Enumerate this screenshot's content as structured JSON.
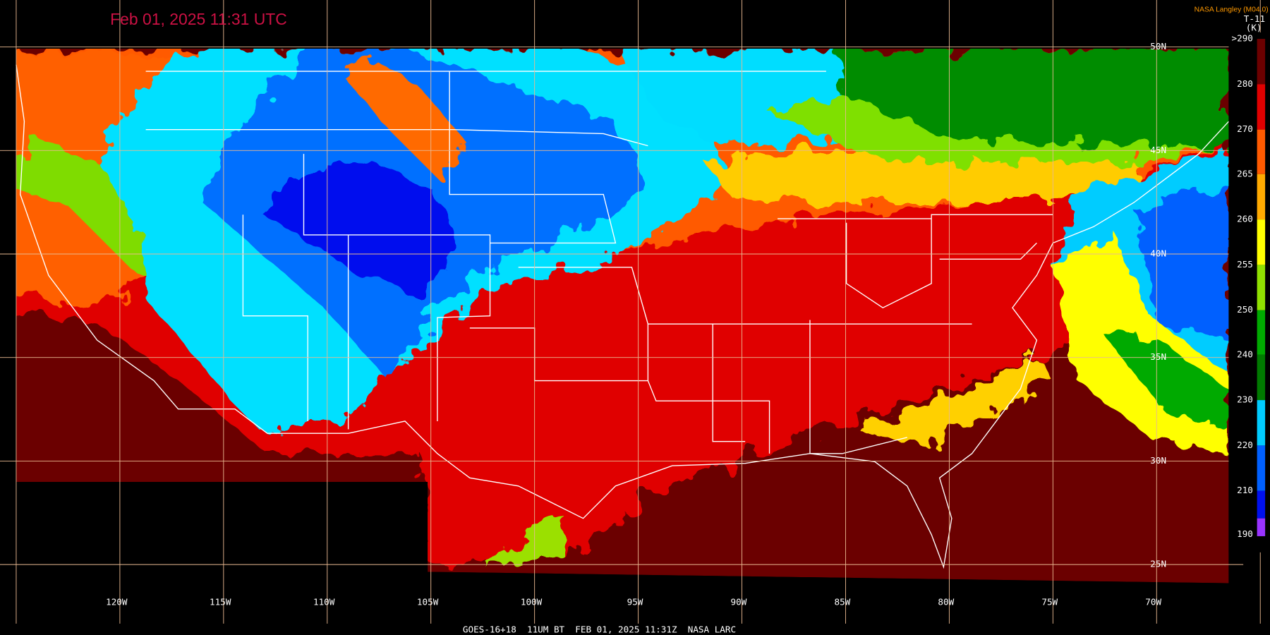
{
  "header": {
    "timestamp": "Feb 01, 2025 11:31 UTC",
    "source": "NASA Langley (M04.0)"
  },
  "colorbar": {
    "band": "T-11",
    "unit": "(K)",
    "labels": [
      ">290",
      "280",
      "270",
      "265",
      "260",
      "255",
      "250",
      "240",
      "230",
      "220",
      "210",
      "190"
    ]
  },
  "grid": {
    "latitudes": [
      "50N",
      "45N",
      "40N",
      "35N",
      "30N",
      "25N"
    ],
    "longitudes": [
      "120W",
      "115W",
      "110W",
      "105W",
      "100W",
      "95W",
      "90W",
      "85W",
      "80W",
      "75W",
      "70W"
    ]
  },
  "footer": "GOES-16+18  11UM BT  FEB 01, 2025 11:31Z  NASA LARC"
}
